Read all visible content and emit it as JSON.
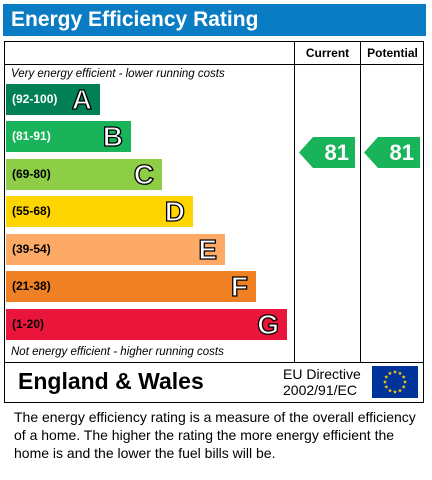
{
  "header": {
    "title": "Energy Efficiency Rating"
  },
  "columns": {
    "current": "Current",
    "potential": "Potential"
  },
  "notes": {
    "top": "Very energy efficient - lower running costs",
    "bottom": "Not energy efficient - higher running costs"
  },
  "bands": [
    {
      "range": "(92-100)",
      "letter": "A",
      "color": "#008054",
      "text_color": "#ffffff"
    },
    {
      "range": "(81-91)",
      "letter": "B",
      "color": "#19b459",
      "text_color": "#ffffff"
    },
    {
      "range": "(69-80)",
      "letter": "C",
      "color": "#8dce46",
      "text_color": "#000000"
    },
    {
      "range": "(55-68)",
      "letter": "D",
      "color": "#ffd500",
      "text_color": "#000000"
    },
    {
      "range": "(39-54)",
      "letter": "E",
      "color": "#fcaa65",
      "text_color": "#000000"
    },
    {
      "range": "(21-38)",
      "letter": "F",
      "color": "#ef8023",
      "text_color": "#000000"
    },
    {
      "range": "(1-20)",
      "letter": "G",
      "color": "#e9153b",
      "text_color": "#000000"
    }
  ],
  "ratings": {
    "current": {
      "value": "81",
      "color": "#19b459"
    },
    "potential": {
      "value": "81",
      "color": "#19b459"
    }
  },
  "footer": {
    "region": "England & Wales",
    "directive_line1": "EU Directive",
    "directive_line2": "2002/91/EC",
    "flag_icon": "eu-flag-icon",
    "flag_color": "#003399",
    "star_color": "#ffcc00"
  },
  "description": "The energy efficiency rating is a measure of the overall efficiency of a home.  The higher the rating the more energy efficient the home is and the lower the fuel bills will be."
}
